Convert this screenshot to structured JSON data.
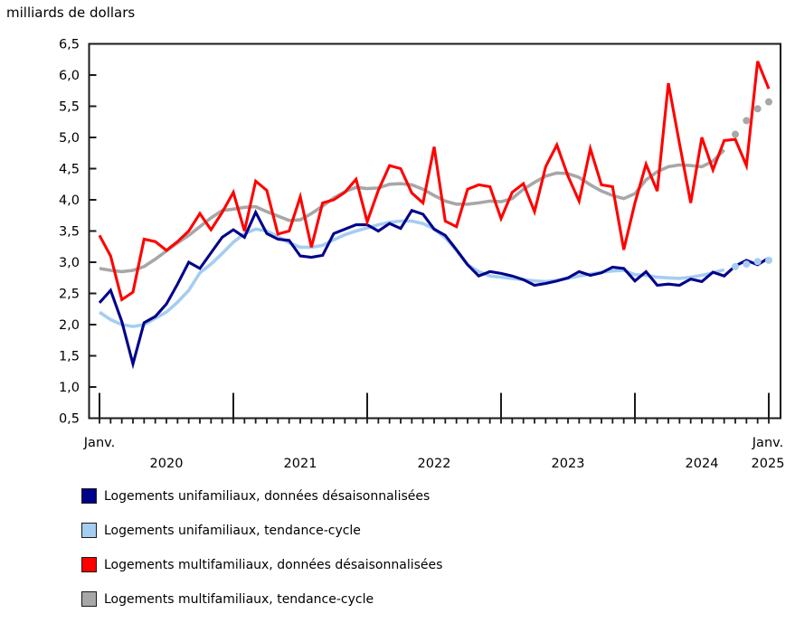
{
  "chart": {
    "title": "milliards de dollars"
  },
  "axes": {
    "y_ticks": [
      {
        "value": 6.5,
        "label": "6,5"
      },
      {
        "value": 6.0,
        "label": "6,0"
      },
      {
        "value": 5.5,
        "label": "5,5"
      },
      {
        "value": 5.0,
        "label": "5,0"
      },
      {
        "value": 4.5,
        "label": "4,5"
      },
      {
        "value": 4.0,
        "label": "4,0"
      },
      {
        "value": 3.5,
        "label": "3,5"
      },
      {
        "value": 3.0,
        "label": "3,0"
      },
      {
        "value": 2.5,
        "label": "2,5"
      },
      {
        "value": 2.0,
        "label": "2,0"
      },
      {
        "value": 1.5,
        "label": "1,5"
      },
      {
        "value": 1.0,
        "label": "1,0"
      },
      {
        "value": 0.5,
        "label": "0,5"
      }
    ],
    "x_row1": [
      {
        "label": "Janv.",
        "month_index": 0
      },
      {
        "label": "Janv.",
        "month_index": 60
      }
    ],
    "x_row2": [
      {
        "label": "2020",
        "month_index": 6
      },
      {
        "label": "2021",
        "month_index": 18
      },
      {
        "label": "2022",
        "month_index": 30
      },
      {
        "label": "2023",
        "month_index": 42
      },
      {
        "label": "2024",
        "month_index": 54
      },
      {
        "label": "2025",
        "month_index": 60
      }
    ]
  },
  "chart_data": {
    "type": "line",
    "title": "milliards de dollars",
    "xlabel": "",
    "ylabel": "milliards de dollars",
    "ylim": [
      0.5,
      6.5
    ],
    "x_unit": "month",
    "x_range": [
      "janv. 2020",
      "janv. 2025"
    ],
    "months_per_year_tick": 12,
    "series": [
      {
        "id": "multifam_tc",
        "name": "Logements multifamiliaux, tendance-cycle",
        "color": "#a7a7a7",
        "width": 3.6,
        "dot_tail_from": 57,
        "values": [
          2.9,
          2.87,
          2.85,
          2.87,
          2.93,
          3.05,
          3.18,
          3.31,
          3.43,
          3.57,
          3.71,
          3.83,
          3.85,
          3.88,
          3.89,
          3.81,
          3.74,
          3.67,
          3.68,
          3.78,
          3.9,
          4.03,
          4.13,
          4.2,
          4.18,
          4.19,
          4.25,
          4.26,
          4.24,
          4.17,
          4.07,
          3.98,
          3.93,
          3.93,
          3.95,
          3.98,
          3.97,
          4.02,
          4.17,
          4.28,
          4.38,
          4.43,
          4.42,
          4.36,
          4.24,
          4.14,
          4.07,
          4.02,
          4.1,
          4.32,
          4.45,
          4.53,
          4.56,
          4.55,
          4.53,
          4.62,
          4.8,
          5.05,
          5.27,
          5.46,
          5.57
        ]
      },
      {
        "id": "unifam_tc",
        "name": "Logements unifamiliaux, tendance-cycle",
        "color": "#a5cdf0",
        "width": 3.6,
        "dot_tail_from": 57,
        "values": [
          2.2,
          2.08,
          2.0,
          1.97,
          2.0,
          2.1,
          2.2,
          2.36,
          2.55,
          2.83,
          2.97,
          3.14,
          3.32,
          3.46,
          3.53,
          3.5,
          3.41,
          3.31,
          3.24,
          3.24,
          3.27,
          3.36,
          3.44,
          3.5,
          3.55,
          3.6,
          3.64,
          3.66,
          3.66,
          3.62,
          3.53,
          3.39,
          3.19,
          2.96,
          2.85,
          2.78,
          2.76,
          2.74,
          2.72,
          2.7,
          2.69,
          2.71,
          2.74,
          2.78,
          2.81,
          2.84,
          2.86,
          2.87,
          2.8,
          2.79,
          2.76,
          2.75,
          2.74,
          2.76,
          2.79,
          2.83,
          2.88,
          2.93,
          2.97,
          3.01,
          3.03
        ]
      },
      {
        "id": "unifam_sa",
        "name": "Logements unifamiliaux, données désaisonnalisées",
        "color": "#00008b",
        "width": 3.1,
        "dot_tail_from": null,
        "values": [
          2.35,
          2.55,
          2.05,
          1.37,
          2.03,
          2.13,
          2.33,
          2.65,
          3.0,
          2.9,
          3.15,
          3.4,
          3.52,
          3.4,
          3.8,
          3.46,
          3.37,
          3.35,
          3.1,
          3.08,
          3.11,
          3.46,
          3.53,
          3.6,
          3.6,
          3.5,
          3.62,
          3.54,
          3.83,
          3.77,
          3.53,
          3.43,
          3.2,
          2.96,
          2.78,
          2.85,
          2.82,
          2.78,
          2.72,
          2.63,
          2.66,
          2.7,
          2.75,
          2.85,
          2.79,
          2.83,
          2.92,
          2.9,
          2.7,
          2.85,
          2.63,
          2.65,
          2.63,
          2.73,
          2.69,
          2.84,
          2.78,
          2.94,
          3.03,
          2.96,
          3.07
        ]
      },
      {
        "id": "multifam_sa",
        "name": "Logements multifamiliaux, données désaisonnalisées",
        "color": "#ff0000",
        "width": 3.1,
        "dot_tail_from": null,
        "values": [
          3.43,
          3.1,
          2.4,
          2.52,
          3.37,
          3.33,
          3.19,
          3.33,
          3.5,
          3.78,
          3.52,
          3.8,
          4.12,
          3.5,
          4.3,
          4.15,
          3.45,
          3.5,
          4.05,
          3.24,
          3.95,
          4.0,
          4.12,
          4.33,
          3.65,
          4.15,
          4.55,
          4.5,
          4.11,
          3.95,
          4.85,
          3.66,
          3.57,
          4.17,
          4.24,
          4.21,
          3.7,
          4.12,
          4.26,
          3.81,
          4.53,
          4.88,
          4.38,
          3.98,
          4.82,
          4.24,
          4.21,
          3.2,
          3.95,
          4.57,
          4.14,
          5.87,
          4.9,
          3.95,
          5.0,
          4.48,
          4.95,
          4.97,
          4.55,
          6.22,
          5.78
        ]
      }
    ]
  },
  "legend": {
    "items": [
      {
        "label": "Logements unifamiliaux, données désaisonnalisées",
        "color": "#00008b"
      },
      {
        "label": "Logements unifamiliaux, tendance-cycle",
        "color": "#a5cdf0"
      },
      {
        "label": "Logements multifamiliaux, données désaisonnalisées",
        "color": "#ff0000"
      },
      {
        "label": "Logements multifamiliaux, tendance-cycle",
        "color": "#a7a7a7"
      }
    ]
  }
}
